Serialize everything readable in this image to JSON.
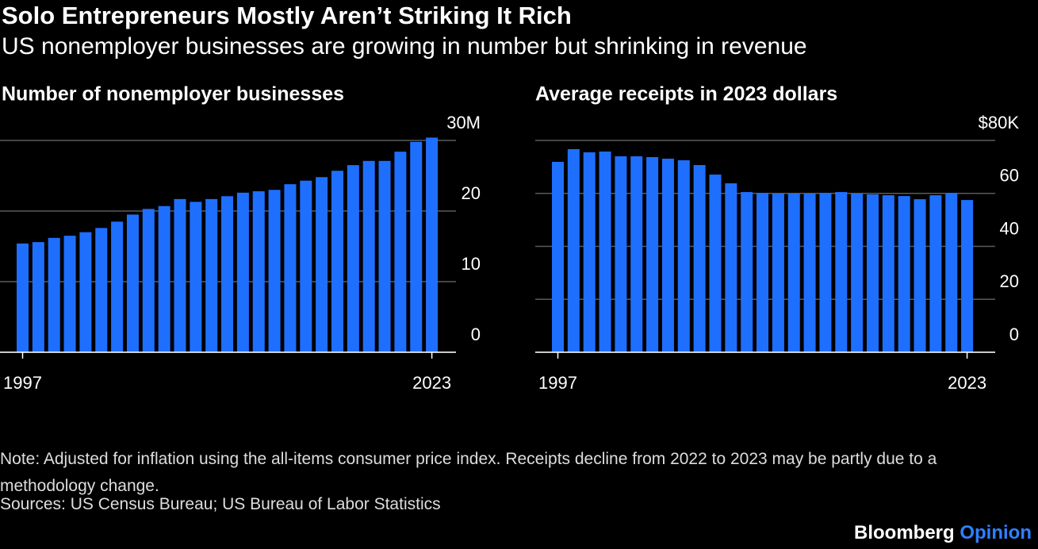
{
  "title": "Solo Entrepreneurs Mostly Aren’t Striking It Rich",
  "subtitle": "US nonemployer businesses are growing in number but shrinking in revenue",
  "note": "Note: Adjusted for inflation using the all-items consumer price index. Receipts decline from 2022 to 2023 may be partly due to a methodology change.",
  "source": "Sources: US Census Bureau; US Bureau of Labor Statistics",
  "brand": {
    "name": "Bloomberg",
    "section": "Opinion"
  },
  "chart_data": [
    {
      "type": "bar",
      "title": "Number of nonemployer businesses",
      "color": "#1f6fff",
      "grid": true,
      "categories": [
        "1997",
        null,
        null,
        null,
        null,
        null,
        null,
        null,
        null,
        null,
        null,
        null,
        null,
        null,
        null,
        null,
        null,
        null,
        null,
        null,
        null,
        null,
        null,
        null,
        null,
        null,
        "2023"
      ],
      "values": [
        15.4,
        15.6,
        16.2,
        16.5,
        17.0,
        17.6,
        18.5,
        19.5,
        20.3,
        20.7,
        21.7,
        21.3,
        21.7,
        22.1,
        22.6,
        22.8,
        23.0,
        23.8,
        24.3,
        24.8,
        25.7,
        26.5,
        27.1,
        27.1,
        28.4,
        29.8,
        30.4
      ],
      "ylim": [
        0,
        30
      ],
      "yticks": [
        0,
        10,
        20,
        {
          "value": 30,
          "label": "30M"
        }
      ]
    },
    {
      "type": "bar",
      "title": "Average receipts in 2023 dollars",
      "color": "#1f6fff",
      "grid": true,
      "categories": [
        "1997",
        null,
        null,
        null,
        null,
        null,
        null,
        null,
        null,
        null,
        null,
        null,
        null,
        null,
        null,
        null,
        null,
        null,
        null,
        null,
        null,
        null,
        null,
        null,
        null,
        null,
        "2023"
      ],
      "values": [
        71.9,
        76.7,
        75.5,
        75.8,
        74.0,
        74.0,
        73.7,
        73.1,
        72.5,
        70.7,
        67.1,
        63.8,
        60.5,
        60.2,
        59.9,
        59.9,
        59.9,
        60.2,
        60.5,
        59.9,
        59.6,
        59.3,
        59.0,
        57.8,
        59.3,
        60.2,
        57.5
      ],
      "ylim": [
        0,
        80
      ],
      "yticks": [
        0,
        20,
        40,
        60,
        {
          "value": 80,
          "label": "$80K"
        }
      ]
    }
  ]
}
